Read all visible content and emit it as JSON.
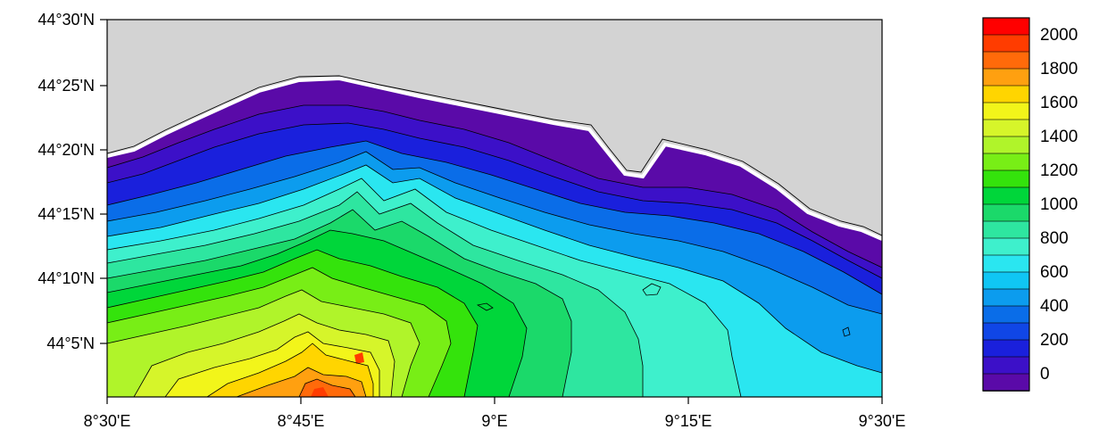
{
  "map": {
    "lat_labels": [
      "44°30'N",
      "44°25'N",
      "44°20'N",
      "44°15'N",
      "44°10'N",
      "44°5'N"
    ],
    "lon_labels": [
      "8°30'E",
      "8°45'E",
      "9°E",
      "9°15'E",
      "9°30'E"
    ],
    "land_color": "#d3d3d3",
    "coast_color": "#ffffff",
    "contour_color": "#000000"
  },
  "colorbar": {
    "labels": [
      "2000",
      "1800",
      "1600",
      "1400",
      "1200",
      "1000",
      "800",
      "600",
      "400",
      "200",
      "0"
    ],
    "levels_top_to_bottom": [
      2100,
      2000,
      1900,
      1800,
      1700,
      1600,
      1500,
      1400,
      1300,
      1200,
      1100,
      1000,
      900,
      800,
      700,
      600,
      500,
      400,
      300,
      200,
      100,
      0
    ],
    "colors_top_to_bottom": [
      "#ff0000",
      "#ff3c00",
      "#ff6a0a",
      "#ffa010",
      "#ffd500",
      "#f2f51a",
      "#d6f52a",
      "#b0f42a",
      "#78ee16",
      "#34e30c",
      "#00d63a",
      "#1bd96a",
      "#2ee6a0",
      "#3ef0cc",
      "#2ae6f0",
      "#10c6f4",
      "#0c9cee",
      "#0a6de8",
      "#1046e6",
      "#1a20dc",
      "#3c10c8",
      "#5a0aa8"
    ]
  }
}
